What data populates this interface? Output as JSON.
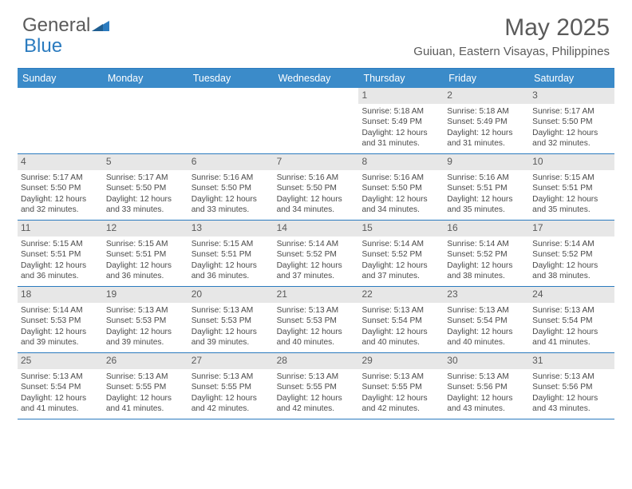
{
  "logo": {
    "part1": "General",
    "part2": "Blue"
  },
  "title": "May 2025",
  "location": "Guiuan, Eastern Visayas, Philippines",
  "colors": {
    "header_bg": "#3b8bc9",
    "border": "#2b7bbf",
    "daynum_bg": "#e7e7e7",
    "text": "#4a4a4a",
    "title_text": "#5a5a5a"
  },
  "dow": [
    "Sunday",
    "Monday",
    "Tuesday",
    "Wednesday",
    "Thursday",
    "Friday",
    "Saturday"
  ],
  "weeks": [
    [
      {
        "n": "",
        "sr": "",
        "ss": "",
        "dl": ""
      },
      {
        "n": "",
        "sr": "",
        "ss": "",
        "dl": ""
      },
      {
        "n": "",
        "sr": "",
        "ss": "",
        "dl": ""
      },
      {
        "n": "",
        "sr": "",
        "ss": "",
        "dl": ""
      },
      {
        "n": "1",
        "sr": "5:18 AM",
        "ss": "5:49 PM",
        "dl": "12 hours and 31 minutes."
      },
      {
        "n": "2",
        "sr": "5:18 AM",
        "ss": "5:49 PM",
        "dl": "12 hours and 31 minutes."
      },
      {
        "n": "3",
        "sr": "5:17 AM",
        "ss": "5:50 PM",
        "dl": "12 hours and 32 minutes."
      }
    ],
    [
      {
        "n": "4",
        "sr": "5:17 AM",
        "ss": "5:50 PM",
        "dl": "12 hours and 32 minutes."
      },
      {
        "n": "5",
        "sr": "5:17 AM",
        "ss": "5:50 PM",
        "dl": "12 hours and 33 minutes."
      },
      {
        "n": "6",
        "sr": "5:16 AM",
        "ss": "5:50 PM",
        "dl": "12 hours and 33 minutes."
      },
      {
        "n": "7",
        "sr": "5:16 AM",
        "ss": "5:50 PM",
        "dl": "12 hours and 34 minutes."
      },
      {
        "n": "8",
        "sr": "5:16 AM",
        "ss": "5:50 PM",
        "dl": "12 hours and 34 minutes."
      },
      {
        "n": "9",
        "sr": "5:16 AM",
        "ss": "5:51 PM",
        "dl": "12 hours and 35 minutes."
      },
      {
        "n": "10",
        "sr": "5:15 AM",
        "ss": "5:51 PM",
        "dl": "12 hours and 35 minutes."
      }
    ],
    [
      {
        "n": "11",
        "sr": "5:15 AM",
        "ss": "5:51 PM",
        "dl": "12 hours and 36 minutes."
      },
      {
        "n": "12",
        "sr": "5:15 AM",
        "ss": "5:51 PM",
        "dl": "12 hours and 36 minutes."
      },
      {
        "n": "13",
        "sr": "5:15 AM",
        "ss": "5:51 PM",
        "dl": "12 hours and 36 minutes."
      },
      {
        "n": "14",
        "sr": "5:14 AM",
        "ss": "5:52 PM",
        "dl": "12 hours and 37 minutes."
      },
      {
        "n": "15",
        "sr": "5:14 AM",
        "ss": "5:52 PM",
        "dl": "12 hours and 37 minutes."
      },
      {
        "n": "16",
        "sr": "5:14 AM",
        "ss": "5:52 PM",
        "dl": "12 hours and 38 minutes."
      },
      {
        "n": "17",
        "sr": "5:14 AM",
        "ss": "5:52 PM",
        "dl": "12 hours and 38 minutes."
      }
    ],
    [
      {
        "n": "18",
        "sr": "5:14 AM",
        "ss": "5:53 PM",
        "dl": "12 hours and 39 minutes."
      },
      {
        "n": "19",
        "sr": "5:13 AM",
        "ss": "5:53 PM",
        "dl": "12 hours and 39 minutes."
      },
      {
        "n": "20",
        "sr": "5:13 AM",
        "ss": "5:53 PM",
        "dl": "12 hours and 39 minutes."
      },
      {
        "n": "21",
        "sr": "5:13 AM",
        "ss": "5:53 PM",
        "dl": "12 hours and 40 minutes."
      },
      {
        "n": "22",
        "sr": "5:13 AM",
        "ss": "5:54 PM",
        "dl": "12 hours and 40 minutes."
      },
      {
        "n": "23",
        "sr": "5:13 AM",
        "ss": "5:54 PM",
        "dl": "12 hours and 40 minutes."
      },
      {
        "n": "24",
        "sr": "5:13 AM",
        "ss": "5:54 PM",
        "dl": "12 hours and 41 minutes."
      }
    ],
    [
      {
        "n": "25",
        "sr": "5:13 AM",
        "ss": "5:54 PM",
        "dl": "12 hours and 41 minutes."
      },
      {
        "n": "26",
        "sr": "5:13 AM",
        "ss": "5:55 PM",
        "dl": "12 hours and 41 minutes."
      },
      {
        "n": "27",
        "sr": "5:13 AM",
        "ss": "5:55 PM",
        "dl": "12 hours and 42 minutes."
      },
      {
        "n": "28",
        "sr": "5:13 AM",
        "ss": "5:55 PM",
        "dl": "12 hours and 42 minutes."
      },
      {
        "n": "29",
        "sr": "5:13 AM",
        "ss": "5:55 PM",
        "dl": "12 hours and 42 minutes."
      },
      {
        "n": "30",
        "sr": "5:13 AM",
        "ss": "5:56 PM",
        "dl": "12 hours and 43 minutes."
      },
      {
        "n": "31",
        "sr": "5:13 AM",
        "ss": "5:56 PM",
        "dl": "12 hours and 43 minutes."
      }
    ]
  ],
  "labels": {
    "sunrise": "Sunrise: ",
    "sunset": "Sunset: ",
    "daylight": "Daylight: "
  }
}
